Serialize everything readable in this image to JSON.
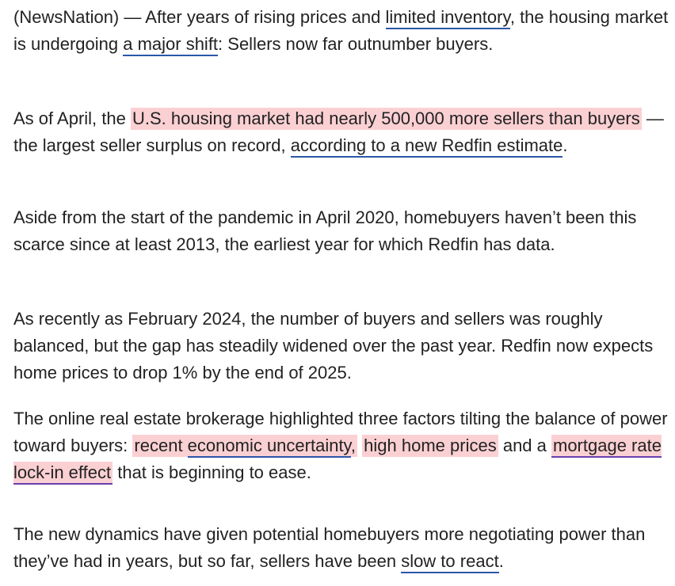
{
  "article": {
    "p1": {
      "t1": "(NewsNation) — After years of rising prices and ",
      "link1": "limited inventory",
      "t2": ", the housing market is undergoing ",
      "link2": "a major shift",
      "t3": ": Sellers now far outnumber buyers."
    },
    "p2": {
      "t1": "As of April, the ",
      "highlight1": "U.S. housing market had nearly 500,000 more sellers than buyers",
      "t2": " — the largest seller surplus on record, ",
      "link1": "according to a new Redfin estimate",
      "t3": "."
    },
    "p3": {
      "text": "Aside from the start of the pandemic in April 2020, homebuyers haven’t been this scarce since at least 2013, the earliest year for which Redfin has data."
    },
    "p4": {
      "text": "As recently as February 2024, the number of buyers and sellers was roughly balanced, but the gap has steadily widened over the past year. Redfin now expects home prices to drop 1% by the end of 2025."
    },
    "p5": {
      "t1": "The online real estate brokerage highlighted three factors tilting the balance of power toward buyers: ",
      "highlight1_pre": "recent ",
      "highlight1_link": "economic uncertainty",
      "highlight1_post": ",",
      "t2": " ",
      "highlight2": "high home prices",
      "t3": " and a ",
      "highlight3": "mortgage rate lock-in effect",
      "t4": " that is beginning to ease."
    },
    "p6": {
      "t1": "The new dynamics have given potential homebuyers more negotiating power than they’ve had in years, but so far, sellers have been ",
      "link1": "slow to react",
      "t2": "."
    }
  },
  "colors": {
    "text": "#222222",
    "link_underline": "#2b57a7",
    "highlight_bg": "#fbd0d3",
    "highlight_underline": "#6b3fae"
  }
}
